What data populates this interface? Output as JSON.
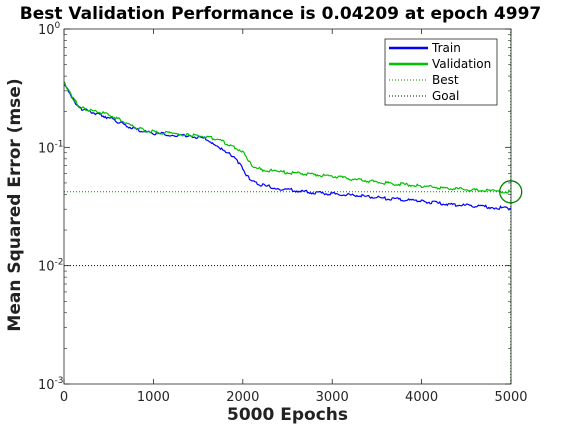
{
  "chart_data": {
    "type": "line",
    "title": "Best Validation Performance is 0.04209 at epoch 4997",
    "xlabel": "5000 Epochs",
    "ylabel": "Mean Squared Error  (mse)",
    "x_scale": "linear",
    "y_scale": "log",
    "xlim": [
      0,
      5000
    ],
    "ylim": [
      0.001,
      1
    ],
    "x_ticks": [
      0,
      1000,
      2000,
      3000,
      4000,
      5000
    ],
    "x_tick_labels": [
      "0",
      "1000",
      "2000",
      "3000",
      "4000",
      "5000"
    ],
    "y_ticks": [
      0.001,
      0.01,
      0.1,
      1
    ],
    "y_tick_labels": [
      {
        "base": "10",
        "exp": "-3"
      },
      {
        "base": "10",
        "exp": "-2"
      },
      {
        "base": "10",
        "exp": "-1"
      },
      {
        "base": "10",
        "exp": "0"
      }
    ],
    "grid": false,
    "legend_position": "top-right",
    "series": [
      {
        "name": "Train",
        "color": "#0000ff",
        "style": "solid",
        "points": [
          [
            0,
            0.34
          ],
          [
            50,
            0.3
          ],
          [
            100,
            0.26
          ],
          [
            150,
            0.225
          ],
          [
            200,
            0.21
          ],
          [
            300,
            0.2
          ],
          [
            400,
            0.19
          ],
          [
            500,
            0.178
          ],
          [
            600,
            0.165
          ],
          [
            700,
            0.152
          ],
          [
            800,
            0.142
          ],
          [
            900,
            0.135
          ],
          [
            1000,
            0.131
          ],
          [
            1200,
            0.128
          ],
          [
            1400,
            0.124
          ],
          [
            1500,
            0.122
          ],
          [
            1600,
            0.118
          ],
          [
            1650,
            0.111
          ],
          [
            1700,
            0.103
          ],
          [
            1750,
            0.097
          ],
          [
            1800,
            0.093
          ],
          [
            1850,
            0.089
          ],
          [
            1900,
            0.083
          ],
          [
            1950,
            0.075
          ],
          [
            2000,
            0.066
          ],
          [
            2050,
            0.057
          ],
          [
            2100,
            0.052
          ],
          [
            2200,
            0.048
          ],
          [
            2400,
            0.045
          ],
          [
            2700,
            0.042
          ],
          [
            3000,
            0.0405
          ],
          [
            3300,
            0.039
          ],
          [
            3600,
            0.037
          ],
          [
            4000,
            0.035
          ],
          [
            4300,
            0.033
          ],
          [
            4600,
            0.032
          ],
          [
            4800,
            0.031
          ],
          [
            5000,
            0.0305
          ]
        ]
      },
      {
        "name": "Validation",
        "color": "#00c000",
        "style": "solid",
        "points": [
          [
            0,
            0.35
          ],
          [
            50,
            0.3
          ],
          [
            100,
            0.26
          ],
          [
            150,
            0.23
          ],
          [
            200,
            0.215
          ],
          [
            300,
            0.205
          ],
          [
            400,
            0.198
          ],
          [
            500,
            0.188
          ],
          [
            600,
            0.175
          ],
          [
            700,
            0.16
          ],
          [
            800,
            0.147
          ],
          [
            900,
            0.139
          ],
          [
            1000,
            0.135
          ],
          [
            1200,
            0.131
          ],
          [
            1400,
            0.127
          ],
          [
            1500,
            0.126
          ],
          [
            1600,
            0.122
          ],
          [
            1700,
            0.117
          ],
          [
            1800,
            0.11
          ],
          [
            1900,
            0.101
          ],
          [
            2000,
            0.092
          ],
          [
            2050,
            0.08
          ],
          [
            2100,
            0.071
          ],
          [
            2200,
            0.065
          ],
          [
            2400,
            0.062
          ],
          [
            2700,
            0.06
          ],
          [
            3000,
            0.057
          ],
          [
            3300,
            0.053
          ],
          [
            3600,
            0.05
          ],
          [
            4000,
            0.047
          ],
          [
            4300,
            0.045
          ],
          [
            4600,
            0.0435
          ],
          [
            4800,
            0.0428
          ],
          [
            5000,
            0.0421
          ]
        ]
      }
    ],
    "best": {
      "name": "Best",
      "epoch": 4997,
      "value": 0.04209,
      "color": "#008000",
      "style": "dotted"
    },
    "goal": {
      "name": "Goal",
      "value": 0.01,
      "color": "#000000",
      "style": "dotted"
    }
  }
}
